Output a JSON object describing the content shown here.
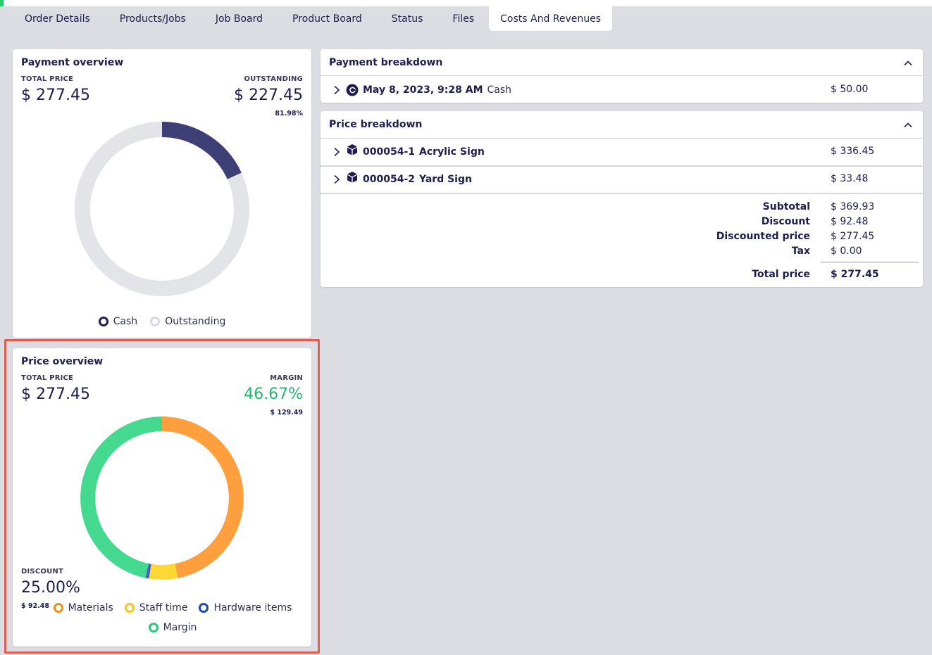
{
  "tabs": [
    {
      "label": "Order Details"
    },
    {
      "label": "Products/Jobs"
    },
    {
      "label": "Job Board"
    },
    {
      "label": "Product Board"
    },
    {
      "label": "Status"
    },
    {
      "label": "Files"
    },
    {
      "label": "Costs And Revenues",
      "active": true
    }
  ],
  "payment_overview": {
    "title": "Payment overview",
    "total_label": "TOTAL PRICE",
    "total_value": "$ 277.45",
    "outstanding_label": "OUTSTANDING",
    "outstanding_value": "$ 227.45",
    "outstanding_pct": "81.98%",
    "legend": [
      {
        "label": "Cash",
        "color": "#1d1d4f"
      },
      {
        "label": "Outstanding",
        "color": "#d9dadf"
      }
    ],
    "donut_colors": {
      "cash": "#3f3f77",
      "outstanding": "#e3e4e8"
    }
  },
  "price_overview": {
    "title": "Price overview",
    "total_label": "TOTAL PRICE",
    "total_value": "$ 277.45",
    "margin_label": "MARGIN",
    "margin_pct": "46.67%",
    "margin_value": "$ 129.49",
    "discount_label": "DISCOUNT",
    "discount_pct": "25.00%",
    "discount_value": "$ 92.48",
    "legend": [
      {
        "label": "Materials",
        "color": "#f28a1c"
      },
      {
        "label": "Staff time",
        "color": "#f5c518"
      },
      {
        "label": "Hardware items",
        "color": "#1f4aa8"
      },
      {
        "label": "Margin",
        "color": "#26c87a"
      }
    ],
    "margin_color": "#22b869"
  },
  "payment_breakdown": {
    "title": "Payment breakdown",
    "payments": [
      {
        "date": "May 8, 2023, 9:28 AM",
        "method": "Cash",
        "amount": "$ 50.00"
      }
    ]
  },
  "price_breakdown": {
    "title": "Price breakdown",
    "items": [
      {
        "id": "000054-1",
        "name": "Acrylic Sign",
        "amount": "$ 336.45"
      },
      {
        "id": "000054-2",
        "name": "Yard Sign",
        "amount": "$ 33.48"
      }
    ],
    "summary": [
      {
        "label": "Subtotal",
        "value": "$ 369.93"
      },
      {
        "label": "Discount",
        "value": "$ 92.48"
      },
      {
        "label": "Discounted price",
        "value": "$ 277.45"
      },
      {
        "label": "Tax",
        "value": "$ 0.00"
      }
    ],
    "total_label": "Total price",
    "total_value": "$ 277.45"
  }
}
